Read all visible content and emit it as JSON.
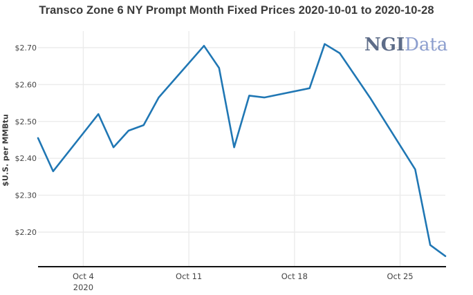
{
  "title": "Transco Zone 6 NY Prompt Month Fixed Prices 2020-10-01 to 2020-10-28",
  "logo": {
    "ngi": "NGI",
    "data": "Data",
    "ngi_color": "#5d6c88",
    "data_color": "#8c9ece"
  },
  "colors": {
    "line": "#2077b4",
    "grid": "#ebebeb",
    "axis": "#111111",
    "title_text": "#3a3a3a",
    "tick_text": "#444444"
  },
  "y_axis": {
    "label": "$U.S. per MMBtu",
    "ticks": [
      {
        "value": 2.2,
        "label": "$2.20"
      },
      {
        "value": 2.3,
        "label": "$2.30"
      },
      {
        "value": 2.4,
        "label": "$2.40"
      },
      {
        "value": 2.5,
        "label": "$2.50"
      },
      {
        "value": 2.6,
        "label": "$2.60"
      },
      {
        "value": 2.7,
        "label": "$2.70"
      }
    ]
  },
  "x_axis": {
    "ticks": [
      {
        "day": 4,
        "label": "Oct 4",
        "sublabel": "2020"
      },
      {
        "day": 11,
        "label": "Oct 11",
        "sublabel": ""
      },
      {
        "day": 18,
        "label": "Oct 18",
        "sublabel": ""
      },
      {
        "day": 25,
        "label": "Oct 25",
        "sublabel": ""
      }
    ]
  },
  "chart_data": {
    "type": "line",
    "title": "Transco Zone 6 NY Prompt Month Fixed Prices 2020-10-01 to 2020-10-28",
    "xlabel": "",
    "ylabel": "$U.S. per MMBtu",
    "x": [
      "2020-10-01",
      "2020-10-02",
      "2020-10-05",
      "2020-10-06",
      "2020-10-07",
      "2020-10-08",
      "2020-10-09",
      "2020-10-12",
      "2020-10-13",
      "2020-10-14",
      "2020-10-15",
      "2020-10-16",
      "2020-10-19",
      "2020-10-20",
      "2020-10-21",
      "2020-10-22",
      "2020-10-23",
      "2020-10-26",
      "2020-10-27",
      "2020-10-28"
    ],
    "values": [
      2.455,
      2.365,
      2.52,
      2.43,
      2.475,
      2.49,
      2.565,
      2.705,
      2.645,
      2.43,
      2.57,
      2.565,
      2.59,
      2.71,
      2.685,
      2.625,
      2.565,
      2.37,
      2.165,
      2.135
    ],
    "xlim_days": [
      1,
      28
    ],
    "ylim": [
      2.1,
      2.75
    ],
    "grid": true,
    "legend": "none",
    "line_color": "#2077b4"
  }
}
